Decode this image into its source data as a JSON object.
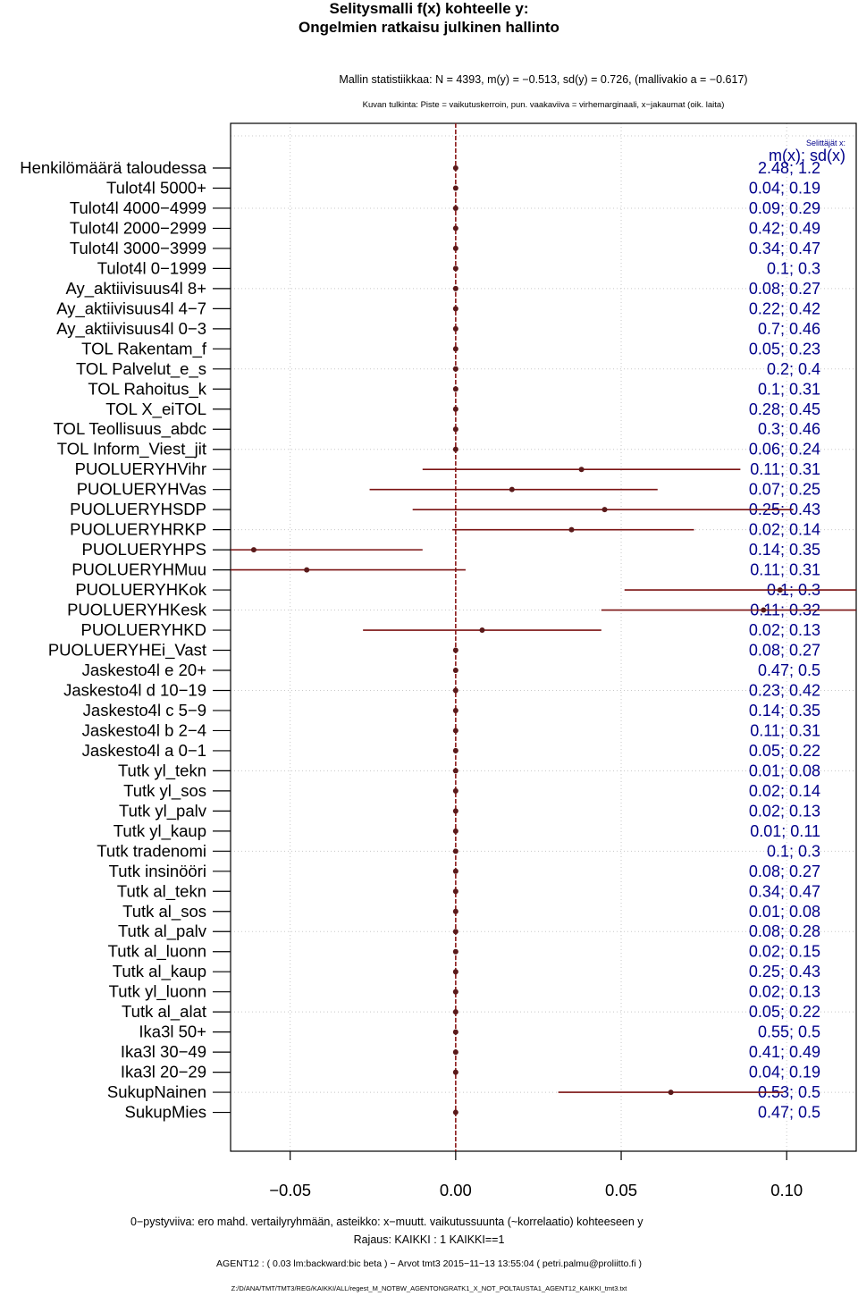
{
  "titles": {
    "line1": "Selitysmalli f(x) kohteelle y:",
    "line2": "Ongelmien ratkaisu julkinen hallinto"
  },
  "stats_line": "Mallin statistiikkaa: N = 4393, m(y) = −0.513, sd(y) = 0.726, (mallivakio a = −0.617)",
  "guide_line": "Kuvan tulkinta: Piste = vaikutuskerroin, pun. vaakaviiva = virhemarginaali, x−jakaumat (oik. laita)",
  "footer": {
    "line1": "0−pystyviiva: ero mahd. vertailyryhmään, asteikko: x−muutt. vaikutussuunta (~korrelaatio) kohteeseen y",
    "line2": "Rajaus: KAIKKI : 1  KAIKKI==1",
    "line3": "AGENT12 : ( 0.03 lm:backward:bic beta )  −  Arvot tmt3 2015−11−13 13:55:04 ( petri.palmu@proliitto.fi )",
    "line4": "Z:/D/ANA/TMT/TMT3/REG/KAIKKI/ALL/regest_M_NOTBW_AGENTONGRATK1_X_NOT_POLTAUSTA1_AGENT12_KAIKKI_tmt3.txt"
  },
  "colors": {
    "point": "#5a1a1a",
    "errorbar": "#7b1313",
    "zero_line": "#8b1a1a",
    "right_text": "#00008b",
    "grid": "#c8c8c8"
  },
  "chart_data": {
    "type": "dot-errorbar",
    "xlim": [
      -0.068,
      0.121
    ],
    "x_ticks": [
      -0.05,
      0.0,
      0.05,
      0.1
    ],
    "x_tick_labels": [
      "−0.05",
      "0.00",
      "0.05",
      "0.10"
    ],
    "zero_line": 0,
    "grid": true,
    "right_header_small": "Selittäjät x:",
    "right_header": "m(x); sd(x)",
    "items": [
      {
        "label": "Henkilömäärä taloudessa",
        "coef": 0.0,
        "lo": null,
        "hi": null,
        "stats": "2.48; 1.2"
      },
      {
        "label": "Tulot4l 5000+",
        "coef": 0.0,
        "lo": null,
        "hi": null,
        "stats": "0.04; 0.19"
      },
      {
        "label": "Tulot4l 4000−4999",
        "coef": 0.0,
        "lo": null,
        "hi": null,
        "stats": "0.09; 0.29"
      },
      {
        "label": "Tulot4l 2000−2999",
        "coef": 0.0,
        "lo": null,
        "hi": null,
        "stats": "0.42; 0.49"
      },
      {
        "label": "Tulot4l 3000−3999",
        "coef": 0.0,
        "lo": null,
        "hi": null,
        "stats": "0.34; 0.47"
      },
      {
        "label": "Tulot4l 0−1999",
        "coef": 0.0,
        "lo": null,
        "hi": null,
        "stats": "0.1; 0.3"
      },
      {
        "label": "Ay_aktiivisuus4l 8+",
        "coef": 0.0,
        "lo": null,
        "hi": null,
        "stats": "0.08; 0.27"
      },
      {
        "label": "Ay_aktiivisuus4l 4−7",
        "coef": 0.0,
        "lo": null,
        "hi": null,
        "stats": "0.22; 0.42"
      },
      {
        "label": "Ay_aktiivisuus4l 0−3",
        "coef": 0.0,
        "lo": null,
        "hi": null,
        "stats": "0.7; 0.46"
      },
      {
        "label": "TOL Rakentam_f",
        "coef": 0.0,
        "lo": null,
        "hi": null,
        "stats": "0.05; 0.23"
      },
      {
        "label": "TOL Palvelut_e_s",
        "coef": 0.0,
        "lo": null,
        "hi": null,
        "stats": "0.2; 0.4"
      },
      {
        "label": "TOL Rahoitus_k",
        "coef": 0.0,
        "lo": null,
        "hi": null,
        "stats": "0.1; 0.31"
      },
      {
        "label": "TOL X_eiTOL",
        "coef": 0.0,
        "lo": null,
        "hi": null,
        "stats": "0.28; 0.45"
      },
      {
        "label": "TOL Teollisuus_abdc",
        "coef": 0.0,
        "lo": null,
        "hi": null,
        "stats": "0.3; 0.46"
      },
      {
        "label": "TOL Inform_Viest_jit",
        "coef": 0.0,
        "lo": null,
        "hi": null,
        "stats": "0.06; 0.24"
      },
      {
        "label": "PUOLUERYHVihr",
        "coef": 0.038,
        "lo": -0.01,
        "hi": 0.086,
        "stats": "0.11; 0.31"
      },
      {
        "label": "PUOLUERYHVas",
        "coef": 0.017,
        "lo": -0.026,
        "hi": 0.061,
        "stats": "0.07; 0.25"
      },
      {
        "label": "PUOLUERYHSDP",
        "coef": 0.045,
        "lo": -0.013,
        "hi": 0.102,
        "stats": "0.25; 0.43"
      },
      {
        "label": "PUOLUERYHRKP",
        "coef": 0.035,
        "lo": -0.001,
        "hi": 0.072,
        "stats": "0.02; 0.14"
      },
      {
        "label": "PUOLUERYHPS",
        "coef": -0.061,
        "lo": -0.095,
        "hi": -0.01,
        "stats": "0.14; 0.35"
      },
      {
        "label": "PUOLUERYHMuu",
        "coef": -0.045,
        "lo": -0.095,
        "hi": 0.003,
        "stats": "0.11; 0.31"
      },
      {
        "label": "PUOLUERYHKok",
        "coef": 0.098,
        "lo": 0.051,
        "hi": 0.145,
        "stats": "0.1; 0.3"
      },
      {
        "label": "PUOLUERYHKesk",
        "coef": 0.093,
        "lo": 0.044,
        "hi": 0.142,
        "stats": "0.11; 0.32"
      },
      {
        "label": "PUOLUERYHKD",
        "coef": 0.008,
        "lo": -0.028,
        "hi": 0.044,
        "stats": "0.02; 0.13"
      },
      {
        "label": "PUOLUERYHEi_Vast",
        "coef": 0.0,
        "lo": null,
        "hi": null,
        "stats": "0.08; 0.27"
      },
      {
        "label": "Jaskesto4l e 20+",
        "coef": 0.0,
        "lo": null,
        "hi": null,
        "stats": "0.47; 0.5"
      },
      {
        "label": "Jaskesto4l d 10−19",
        "coef": 0.0,
        "lo": null,
        "hi": null,
        "stats": "0.23; 0.42"
      },
      {
        "label": "Jaskesto4l c 5−9",
        "coef": 0.0,
        "lo": null,
        "hi": null,
        "stats": "0.14; 0.35"
      },
      {
        "label": "Jaskesto4l b 2−4",
        "coef": 0.0,
        "lo": null,
        "hi": null,
        "stats": "0.11; 0.31"
      },
      {
        "label": "Jaskesto4l a 0−1",
        "coef": 0.0,
        "lo": null,
        "hi": null,
        "stats": "0.05; 0.22"
      },
      {
        "label": "Tutk yl_tekn",
        "coef": 0.0,
        "lo": null,
        "hi": null,
        "stats": "0.01; 0.08"
      },
      {
        "label": "Tutk yl_sos",
        "coef": 0.0,
        "lo": null,
        "hi": null,
        "stats": "0.02; 0.14"
      },
      {
        "label": "Tutk yl_palv",
        "coef": 0.0,
        "lo": null,
        "hi": null,
        "stats": "0.02; 0.13"
      },
      {
        "label": "Tutk yl_kaup",
        "coef": 0.0,
        "lo": null,
        "hi": null,
        "stats": "0.01; 0.11"
      },
      {
        "label": "Tutk tradenomi",
        "coef": 0.0,
        "lo": null,
        "hi": null,
        "stats": "0.1; 0.3"
      },
      {
        "label": "Tutk insinööri",
        "coef": 0.0,
        "lo": null,
        "hi": null,
        "stats": "0.08; 0.27"
      },
      {
        "label": "Tutk al_tekn",
        "coef": 0.0,
        "lo": null,
        "hi": null,
        "stats": "0.34; 0.47"
      },
      {
        "label": "Tutk al_sos",
        "coef": 0.0,
        "lo": null,
        "hi": null,
        "stats": "0.01; 0.08"
      },
      {
        "label": "Tutk al_palv",
        "coef": 0.0,
        "lo": null,
        "hi": null,
        "stats": "0.08; 0.28"
      },
      {
        "label": "Tutk al_luonn",
        "coef": 0.0,
        "lo": null,
        "hi": null,
        "stats": "0.02; 0.15"
      },
      {
        "label": "Tutk al_kaup",
        "coef": 0.0,
        "lo": null,
        "hi": null,
        "stats": "0.25; 0.43"
      },
      {
        "label": "Tutk yl_luonn",
        "coef": 0.0,
        "lo": null,
        "hi": null,
        "stats": "0.02; 0.13"
      },
      {
        "label": "Tutk al_alat",
        "coef": 0.0,
        "lo": null,
        "hi": null,
        "stats": "0.05; 0.22"
      },
      {
        "label": "Ika3l 50+",
        "coef": 0.0,
        "lo": null,
        "hi": null,
        "stats": "0.55; 0.5"
      },
      {
        "label": "Ika3l 30−49",
        "coef": 0.0,
        "lo": null,
        "hi": null,
        "stats": "0.41; 0.49"
      },
      {
        "label": "Ika3l 20−29",
        "coef": 0.0,
        "lo": null,
        "hi": null,
        "stats": "0.04; 0.19"
      },
      {
        "label": "SukupNainen",
        "coef": 0.065,
        "lo": 0.031,
        "hi": 0.099,
        "stats": "0.53; 0.5"
      },
      {
        "label": "SukupMies",
        "coef": 0.0,
        "lo": null,
        "hi": null,
        "stats": "0.47; 0.5"
      }
    ]
  }
}
